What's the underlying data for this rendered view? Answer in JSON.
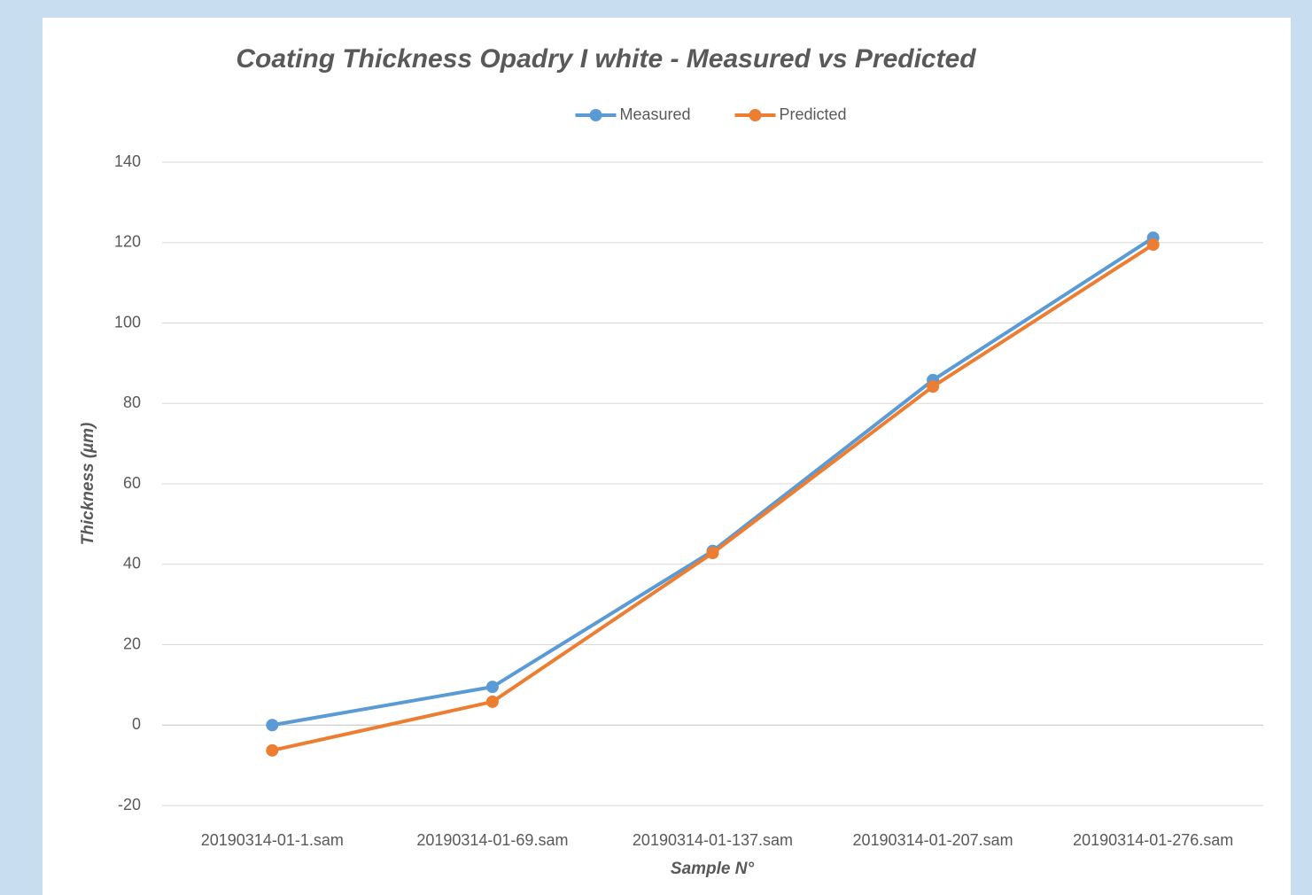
{
  "chart_data": {
    "type": "line",
    "title": "Coating Thickness Opadry I white - Measured vs Predicted",
    "x_label": "Sample N°",
    "y_label": "Thickness (µm)",
    "categories": [
      "20190314-01-1.sam",
      "20190314-01-69.sam",
      "20190314-01-137.sam",
      "20190314-01-207.sam",
      "20190314-01-276.sam"
    ],
    "series": [
      {
        "name": "Measured",
        "color": "#5b9bd5",
        "values": [
          0,
          9.5,
          43.3,
          85.8,
          121.2
        ]
      },
      {
        "name": "Predicted",
        "color": "#ed7d31",
        "values": [
          -6.3,
          5.8,
          42.8,
          84.2,
          119.5
        ]
      }
    ],
    "ylim": [
      -20,
      140
    ],
    "yticks": [
      -20,
      0,
      20,
      40,
      60,
      80,
      100,
      120,
      140
    ],
    "grid": true,
    "legend": "top"
  }
}
